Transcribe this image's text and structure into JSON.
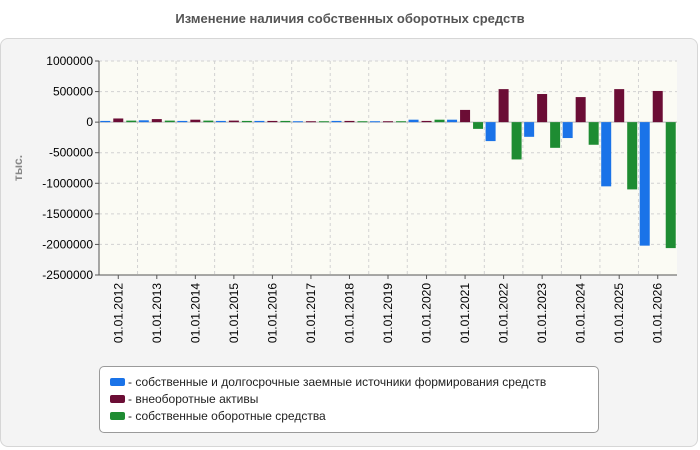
{
  "chart_data": {
    "type": "bar",
    "title": "Изменение наличия собственных оборотных средств",
    "xlabel": "",
    "ylabel": "тыс.",
    "ylim": [
      -2500000,
      1000000
    ],
    "yticks": [
      1000000,
      500000,
      0,
      -500000,
      -1000000,
      -1500000,
      -2000000,
      -2500000
    ],
    "grid": true,
    "legend_position": "bottom",
    "categories": [
      "01.01.2012",
      "01.01.2013",
      "01.01.2014",
      "01.01.2015",
      "01.01.2016",
      "01.01.2017",
      "01.01.2018",
      "01.01.2019",
      "01.01.2020",
      "01.01.2021",
      "01.01.2022",
      "01.01.2023",
      "01.01.2024",
      "01.01.2025",
      "01.01.2026"
    ],
    "series": [
      {
        "name": "- собственные и долгосрочные заемные источники формирования средств",
        "color": "#1a73e8",
        "values": [
          20000,
          30000,
          20000,
          20000,
          20000,
          15000,
          20000,
          15000,
          40000,
          40000,
          -310000,
          -240000,
          -260000,
          -1050000,
          -2020000
        ]
      },
      {
        "name": "- внеоборотные активы",
        "color": "#6b0d35",
        "values": [
          60000,
          50000,
          40000,
          25000,
          20000,
          15000,
          20000,
          15000,
          20000,
          200000,
          540000,
          460000,
          410000,
          540000,
          510000
        ]
      },
      {
        "name": "- собственные оборотные средства",
        "color": "#1e8c32",
        "values": [
          25000,
          25000,
          25000,
          20000,
          20000,
          15000,
          15000,
          15000,
          40000,
          -110000,
          -610000,
          -420000,
          -370000,
          -1100000,
          -2060000
        ]
      }
    ]
  }
}
